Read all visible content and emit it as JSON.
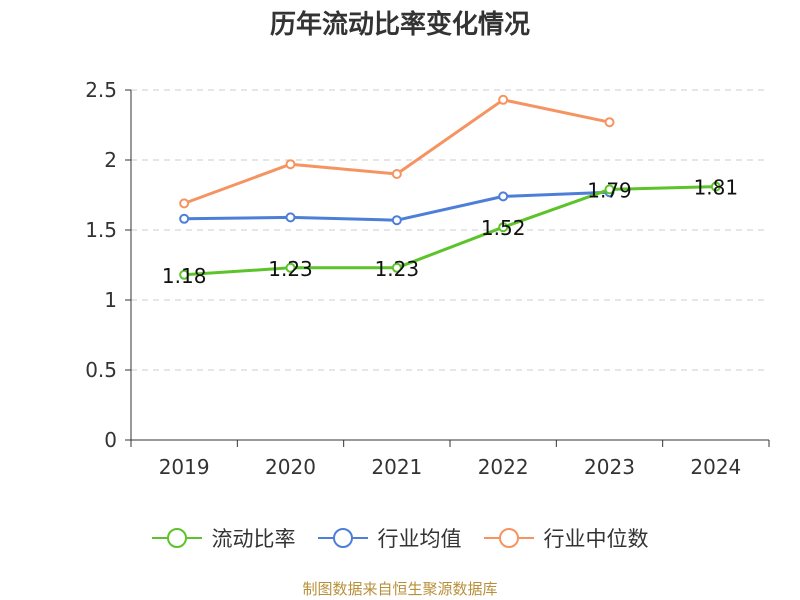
{
  "title": "历年流动比率变化情况",
  "source_note": "制图数据来自恒生聚源数据库",
  "colors": {
    "流动比率": "#5cc42a",
    "行业均值": "#4d7fd9",
    "行业中位数": "#f59461",
    "grid": "#cccccc",
    "axis": "#333333"
  },
  "chart_data": {
    "type": "line",
    "title": "历年流动比率变化情况",
    "xlabel": "",
    "ylabel": "",
    "categories": [
      "2019",
      "2020",
      "2021",
      "2022",
      "2023",
      "2024"
    ],
    "ylim": [
      0,
      2.5
    ],
    "yticks": [
      "0",
      "0.5",
      "1",
      "1.5",
      "2",
      "2.5"
    ],
    "grid": true,
    "legend_position": "bottom",
    "series": [
      {
        "name": "流动比率",
        "values": [
          1.18,
          1.23,
          1.23,
          1.52,
          1.79,
          1.81
        ],
        "labels": [
          "1.18",
          "1.23",
          "1.23",
          "1.52",
          "1.79",
          "1.81"
        ]
      },
      {
        "name": "行业均值",
        "values": [
          1.58,
          1.59,
          1.57,
          1.74,
          1.77,
          null
        ]
      },
      {
        "name": "行业中位数",
        "values": [
          1.69,
          1.97,
          1.9,
          2.43,
          2.27,
          null
        ]
      }
    ]
  }
}
